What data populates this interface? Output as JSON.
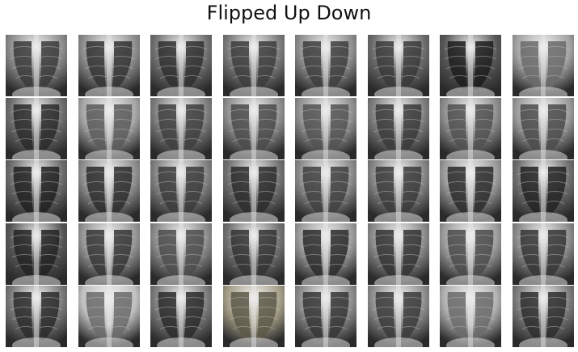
{
  "title": "Flipped Up Down",
  "grid": {
    "rows": 5,
    "cols": 8,
    "tiles": [
      {
        "id": "r1c1",
        "tone": "#8a8a8a",
        "lung": "#3a3a3a"
      },
      {
        "id": "r1c2",
        "tone": "#8c8c8c",
        "lung": "#333333"
      },
      {
        "id": "r1c3",
        "tone": "#6f6f6f",
        "lung": "#2f2f2f"
      },
      {
        "id": "r1c4",
        "tone": "#7a7a7a",
        "lung": "#3c3c3c"
      },
      {
        "id": "r1c5",
        "tone": "#8d8d8d",
        "lung": "#3d3d3d"
      },
      {
        "id": "r1c6",
        "tone": "#6a6a6a",
        "lung": "#3a3a3a"
      },
      {
        "id": "r1c7",
        "tone": "#555555",
        "lung": "#1c1c1c"
      },
      {
        "id": "r1c8",
        "tone": "#a2a2a2",
        "lung": "#6a6a6a"
      },
      {
        "id": "r2c1",
        "tone": "#6c6c6c",
        "lung": "#2a2a2a"
      },
      {
        "id": "r2c2",
        "tone": "#a5a5a5",
        "lung": "#5a5a5a"
      },
      {
        "id": "r2c3",
        "tone": "#7c7c7c",
        "lung": "#3e3e3e"
      },
      {
        "id": "r2c4",
        "tone": "#8e8e8e",
        "lung": "#4a4a4a"
      },
      {
        "id": "r2c5",
        "tone": "#8f8f8f",
        "lung": "#525252"
      },
      {
        "id": "r2c6",
        "tone": "#7c7c7c",
        "lung": "#3a3a3a"
      },
      {
        "id": "r2c7",
        "tone": "#8c8c8c",
        "lung": "#505050"
      },
      {
        "id": "r2c8",
        "tone": "#9a9a9a",
        "lung": "#4a4a4a"
      },
      {
        "id": "r3c1",
        "tone": "#6a6a6a",
        "lung": "#202020"
      },
      {
        "id": "r3c2",
        "tone": "#8e8e8e",
        "lung": "#2c2c2c"
      },
      {
        "id": "r3c3",
        "tone": "#808080",
        "lung": "#3a3a3a"
      },
      {
        "id": "r3c4",
        "tone": "#707070",
        "lung": "#2a2a2a"
      },
      {
        "id": "r3c5",
        "tone": "#8a8a8a",
        "lung": "#3f3f3f"
      },
      {
        "id": "r3c6",
        "tone": "#838383",
        "lung": "#3a3a3a"
      },
      {
        "id": "r3c7",
        "tone": "#9a9a9a",
        "lung": "#2a2a2a"
      },
      {
        "id": "r3c8",
        "tone": "#6e6e6e",
        "lung": "#222222"
      },
      {
        "id": "r4c1",
        "tone": "#555555",
        "lung": "#222222"
      },
      {
        "id": "r4c2",
        "tone": "#959595",
        "lung": "#353535"
      },
      {
        "id": "r4c3",
        "tone": "#8a8a8a",
        "lung": "#4c4c4c"
      },
      {
        "id": "r4c4",
        "tone": "#707070",
        "lung": "#333333"
      },
      {
        "id": "r4c5",
        "tone": "#9a9a9a",
        "lung": "#2a2a2a"
      },
      {
        "id": "r4c6",
        "tone": "#898989",
        "lung": "#333333"
      },
      {
        "id": "r4c7",
        "tone": "#9c9c9c",
        "lung": "#4a4a4a"
      },
      {
        "id": "r4c8",
        "tone": "#8a8a8a",
        "lung": "#353535"
      },
      {
        "id": "r5c1",
        "tone": "#777777",
        "lung": "#2a2a2a"
      },
      {
        "id": "r5c2",
        "tone": "#c0c0c0",
        "lung": "#6a6a6a"
      },
      {
        "id": "r5c3",
        "tone": "#7a7a7a",
        "lung": "#2a2a2a"
      },
      {
        "id": "r5c4",
        "tone": "#a39d86",
        "lung": "#5c5848"
      },
      {
        "id": "r5c5",
        "tone": "#8a8a8a",
        "lung": "#353535"
      },
      {
        "id": "r5c6",
        "tone": "#8c8c8c",
        "lung": "#3a3a3a"
      },
      {
        "id": "r5c7",
        "tone": "#b0b0b0",
        "lung": "#6a6a6a"
      },
      {
        "id": "r5c8",
        "tone": "#7a7a7a",
        "lung": "#2d2d2d"
      }
    ]
  }
}
